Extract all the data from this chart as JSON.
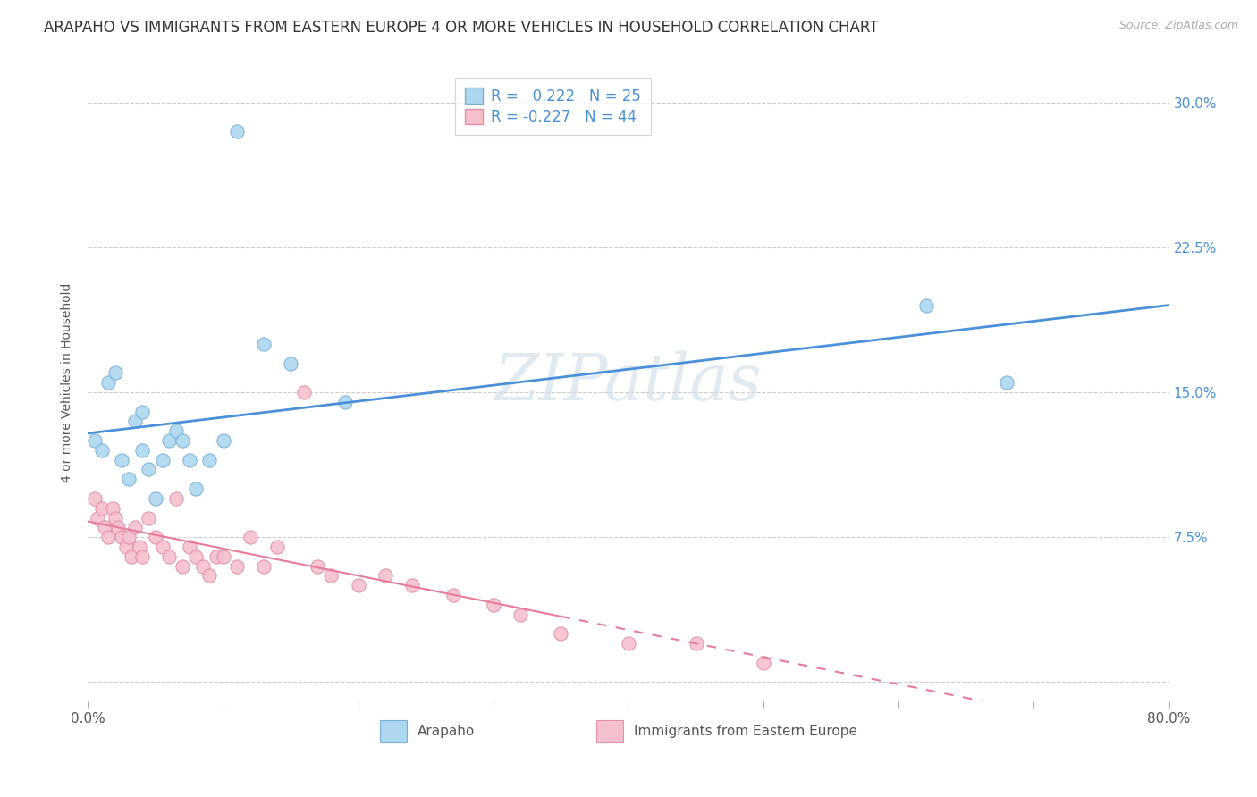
{
  "title": "ARAPAHO VS IMMIGRANTS FROM EASTERN EUROPE 4 OR MORE VEHICLES IN HOUSEHOLD CORRELATION CHART",
  "source": "Source: ZipAtlas.com",
  "ylabel": "4 or more Vehicles in Household",
  "xlim": [
    0.0,
    0.8
  ],
  "ylim": [
    -0.01,
    0.32
  ],
  "xticks": [
    0.0,
    0.1,
    0.2,
    0.3,
    0.4,
    0.5,
    0.6,
    0.7,
    0.8
  ],
  "xticklabels": [
    "0.0%",
    "",
    "",
    "",
    "",
    "",
    "",
    "",
    "80.0%"
  ],
  "yticks": [
    0.0,
    0.075,
    0.15,
    0.225,
    0.3
  ],
  "yticklabels": [
    "",
    "7.5%",
    "15.0%",
    "22.5%",
    "30.0%"
  ],
  "legend_R_blue": "0.222",
  "legend_N_blue": "25",
  "legend_R_pink": "-0.227",
  "legend_N_pink": "44",
  "blue_scatter_x": [
    0.005,
    0.01,
    0.015,
    0.02,
    0.025,
    0.03,
    0.035,
    0.04,
    0.04,
    0.045,
    0.05,
    0.055,
    0.06,
    0.065,
    0.07,
    0.075,
    0.08,
    0.09,
    0.1,
    0.11,
    0.13,
    0.15,
    0.19,
    0.62,
    0.68
  ],
  "blue_scatter_y": [
    0.125,
    0.12,
    0.155,
    0.16,
    0.115,
    0.105,
    0.135,
    0.14,
    0.12,
    0.11,
    0.095,
    0.115,
    0.125,
    0.13,
    0.125,
    0.115,
    0.1,
    0.115,
    0.125,
    0.285,
    0.175,
    0.165,
    0.145,
    0.195,
    0.155
  ],
  "pink_scatter_x": [
    0.005,
    0.007,
    0.01,
    0.012,
    0.015,
    0.018,
    0.02,
    0.022,
    0.025,
    0.028,
    0.03,
    0.032,
    0.035,
    0.038,
    0.04,
    0.045,
    0.05,
    0.055,
    0.06,
    0.065,
    0.07,
    0.075,
    0.08,
    0.085,
    0.09,
    0.095,
    0.1,
    0.11,
    0.12,
    0.13,
    0.14,
    0.16,
    0.17,
    0.18,
    0.2,
    0.22,
    0.24,
    0.27,
    0.3,
    0.32,
    0.35,
    0.4,
    0.45,
    0.5
  ],
  "pink_scatter_y": [
    0.095,
    0.085,
    0.09,
    0.08,
    0.075,
    0.09,
    0.085,
    0.08,
    0.075,
    0.07,
    0.075,
    0.065,
    0.08,
    0.07,
    0.065,
    0.085,
    0.075,
    0.07,
    0.065,
    0.095,
    0.06,
    0.07,
    0.065,
    0.06,
    0.055,
    0.065,
    0.065,
    0.06,
    0.075,
    0.06,
    0.07,
    0.15,
    0.06,
    0.055,
    0.05,
    0.055,
    0.05,
    0.045,
    0.04,
    0.035,
    0.025,
    0.02,
    0.02,
    0.01
  ],
  "blue_color": "#add8f0",
  "pink_color": "#f5c0cd",
  "blue_edge_color": "#7ab0d8",
  "pink_edge_color": "#e090a8",
  "blue_line_color": "#4a90d9",
  "pink_line_color": "#e87a9a",
  "watermark": "ZIPatlas",
  "background_color": "#ffffff",
  "grid_color": "#cccccc",
  "title_fontsize": 12,
  "axis_label_fontsize": 10,
  "tick_fontsize": 11,
  "legend_fontsize": 12,
  "scatter_size": 120
}
